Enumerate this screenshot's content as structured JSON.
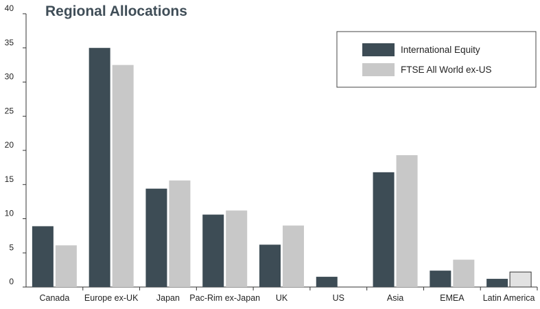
{
  "chart_data": {
    "type": "bar",
    "title": "Regional Allocations",
    "xlabel": "",
    "ylabel": "",
    "ylim": [
      0,
      40
    ],
    "yticks": [
      0,
      5,
      10,
      15,
      20,
      25,
      30,
      35,
      40
    ],
    "grid": false,
    "legend_position": "top-right",
    "categories": [
      "Canada",
      "Europe ex-UK",
      "Japan",
      "Pac-Rim ex-Japan",
      "UK",
      "US",
      "Asia",
      "EMEA",
      "Latin America"
    ],
    "series": [
      {
        "name": "International Equity",
        "color": "#3d4c55",
        "values": [
          8.9,
          35.0,
          14.4,
          10.6,
          6.2,
          1.5,
          16.8,
          2.4,
          1.2
        ]
      },
      {
        "name": "FTSE All World ex-US",
        "color": "#c8c8c8",
        "values": [
          6.1,
          32.5,
          15.6,
          11.2,
          9.0,
          0,
          19.3,
          4.0,
          2.2
        ]
      }
    ]
  }
}
